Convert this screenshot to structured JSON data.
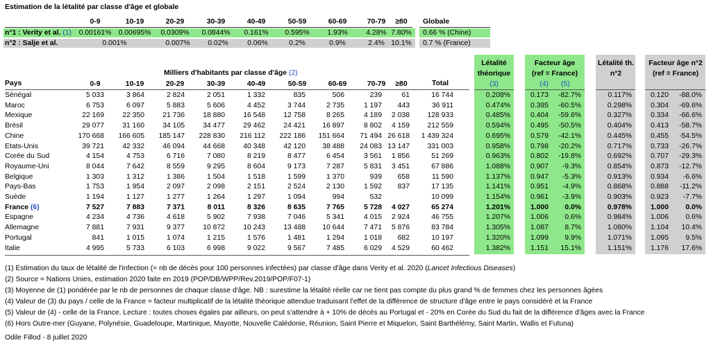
{
  "title": "Estimation de la létalité par classe d'âge et globale",
  "age_classes": [
    "0-9",
    "10-19",
    "20-29",
    "30-39",
    "40-49",
    "50-59",
    "60-69",
    "70-79",
    "≥80"
  ],
  "globale_label": "Globale",
  "study1": {
    "label_prefix": "n°1 : Verity et al. ",
    "label_ref": "(1)",
    "values": [
      "0.00161%",
      "0.00695%",
      "0.0309%",
      "0.0844%",
      "0.161%",
      "0.595%",
      "1.93%",
      "4.28%",
      "7.80%"
    ],
    "globale": "0.66 % (Chine)"
  },
  "study2": {
    "label": "n°2 : Salje et al.",
    "values": [
      "0.001%",
      "0.007%",
      "0.02%",
      "0.06%",
      "0.2%",
      "0.9%",
      "2.4%",
      "10.1%"
    ],
    "globale": "0.7 % (France)"
  },
  "headers": {
    "pays": "Pays",
    "milliers": "Milliers d'habitants par classe d'âge ",
    "milliers_ref": "(2)",
    "total": "Total",
    "letalite_l1": "Létalité",
    "letalite_l2": "théorique",
    "letalite_ref": "(3)",
    "facteur_l1": "Facteur âge",
    "facteur_l2": "(ref = France)",
    "facteur_ref1": "(4)",
    "facteur_ref2": "(5)",
    "let2_l1": "Létalité th.",
    "let2_l2": "n°2",
    "fac2_l1": "Facteur âge n°2",
    "fac2_l2": "(ref = France)"
  },
  "rows": [
    {
      "pays": "Sénégal",
      "vals": [
        "5 033",
        "3 864",
        "2 824",
        "2 051",
        "1 332",
        "835",
        "506",
        "239",
        "61"
      ],
      "total": "16 744",
      "let": "0.208%",
      "fac": "0.173",
      "pct": "-82.7%",
      "let2": "0.117%",
      "fac2": "0.120",
      "pct2": "-88.0%"
    },
    {
      "pays": "Maroc",
      "vals": [
        "6 753",
        "6 097",
        "5 883",
        "5 606",
        "4 452",
        "3 744",
        "2 735",
        "1 197",
        "443"
      ],
      "total": "36 911",
      "let": "0.474%",
      "fac": "0.395",
      "pct": "-60.5%",
      "let2": "0.298%",
      "fac2": "0.304",
      "pct2": "-69.6%"
    },
    {
      "pays": "Mexique",
      "vals": [
        "22 169",
        "22 350",
        "21 736",
        "18 880",
        "16 548",
        "12 758",
        "8 265",
        "4 189",
        "2 038"
      ],
      "total": "128 933",
      "let": "0.485%",
      "fac": "0.404",
      "pct": "-59.6%",
      "let2": "0.327%",
      "fac2": "0.334",
      "pct2": "-66.6%"
    },
    {
      "pays": "Brésil",
      "vals": [
        "29 077",
        "31 160",
        "34 105",
        "34 477",
        "29 462",
        "24 421",
        "16 897",
        "8 802",
        "4 159"
      ],
      "total": "212 559",
      "let": "0.594%",
      "fac": "0.495",
      "pct": "-50.5%",
      "let2": "0.404%",
      "fac2": "0.413",
      "pct2": "-58.7%"
    },
    {
      "pays": "Chine",
      "vals": [
        "170 668",
        "166 605",
        "185 147",
        "228 830",
        "216 112",
        "222 186",
        "151 664",
        "71 494",
        "26 618"
      ],
      "total": "1 439 324",
      "let": "0.695%",
      "fac": "0.579",
      "pct": "-42.1%",
      "let2": "0.445%",
      "fac2": "0.455",
      "pct2": "-54.5%"
    },
    {
      "pays": "Etats-Unis",
      "vals": [
        "39 721",
        "42 332",
        "46 094",
        "44 668",
        "40 348",
        "42 120",
        "38 488",
        "24 083",
        "13 147"
      ],
      "total": "331 003",
      "let": "0.958%",
      "fac": "0.798",
      "pct": "-20.2%",
      "let2": "0.717%",
      "fac2": "0.733",
      "pct2": "-26.7%"
    },
    {
      "pays": "Corée du Sud",
      "vals": [
        "4 154",
        "4 753",
        "6 716",
        "7 080",
        "8 219",
        "8 477",
        "6 454",
        "3 561",
        "1 856"
      ],
      "total": "51 269",
      "let": "0.963%",
      "fac": "0.802",
      "pct": "-19.8%",
      "let2": "0.692%",
      "fac2": "0.707",
      "pct2": "-29.3%"
    },
    {
      "pays": "Royaume-Uni",
      "vals": [
        "8 044",
        "7 642",
        "8 559",
        "9 295",
        "8 604",
        "9 173",
        "7 287",
        "5 831",
        "3 451"
      ],
      "total": "67 886",
      "let": "1.088%",
      "fac": "0.907",
      "pct": "-9.3%",
      "let2": "0.854%",
      "fac2": "0.873",
      "pct2": "-12.7%"
    },
    {
      "pays": "Belgique",
      "vals": [
        "1 303",
        "1 312",
        "1 386",
        "1 504",
        "1 518",
        "1 599",
        "1 370",
        "939",
        "658"
      ],
      "total": "11 590",
      "let": "1.137%",
      "fac": "0.947",
      "pct": "-5.3%",
      "let2": "0.913%",
      "fac2": "0.934",
      "pct2": "-6.6%"
    },
    {
      "pays": "Pays-Bas",
      "vals": [
        "1 753",
        "1 954",
        "2 097",
        "2 098",
        "2 151",
        "2 524",
        "2 130",
        "1 592",
        "837"
      ],
      "total": "17 135",
      "let": "1.141%",
      "fac": "0.951",
      "pct": "-4.9%",
      "let2": "0.868%",
      "fac2": "0.888",
      "pct2": "-11.2%"
    },
    {
      "pays": "Suède",
      "vals": [
        "1 194",
        "1 127",
        "1 277",
        "1 264",
        "1 297",
        "1 094",
        "994",
        "532",
        ""
      ],
      "total": "10 099",
      "let": "1.154%",
      "fac": "0.961",
      "pct": "-3.9%",
      "let2": "0.903%",
      "fac2": "0.923",
      "pct2": "-7.7%"
    },
    {
      "pays": "France ",
      "ref": "(6)",
      "bold": true,
      "vals": [
        "7 527",
        "7 883",
        "7 371",
        "8 011",
        "8 326",
        "8 635",
        "7 765",
        "5 728",
        "4 027"
      ],
      "total": "65 274",
      "let": "1.201%",
      "fac": "1.000",
      "pct": "0.0%",
      "let2": "0.978%",
      "fac2": "1.000",
      "pct2": "0.0%"
    },
    {
      "pays": "Espagne",
      "vals": [
        "4 234",
        "4 736",
        "4 618",
        "5 902",
        "7 938",
        "7 046",
        "5 341",
        "4 015",
        "2 924"
      ],
      "total": "46 755",
      "let": "1.207%",
      "fac": "1.006",
      "pct": "0.6%",
      "let2": "0.984%",
      "fac2": "1.006",
      "pct2": "0.6%"
    },
    {
      "pays": "Allemagne",
      "vals": [
        "7 881",
        "7 931",
        "9 377",
        "10 872",
        "10 243",
        "13 488",
        "10 644",
        "7 471",
        "5 876"
      ],
      "total": "83 784",
      "let": "1.305%",
      "fac": "1.087",
      "pct": "8.7%",
      "let2": "1.080%",
      "fac2": "1.104",
      "pct2": "10.4%"
    },
    {
      "pays": "Portugal",
      "vals": [
        "841",
        "1 015",
        "1 074",
        "1 215",
        "1 576",
        "1 481",
        "1 294",
        "1 018",
        "682"
      ],
      "total": "10 197",
      "let": "1.320%",
      "fac": "1.099",
      "pct": "9.9%",
      "let2": "1.071%",
      "fac2": "1.095",
      "pct2": "9.5%"
    },
    {
      "pays": "Italie",
      "vals": [
        "4 995",
        "5 733",
        "6 103",
        "6 998",
        "9 022",
        "9 567",
        "7 485",
        "6 029",
        "4 529"
      ],
      "total": "60 462",
      "let": "1.382%",
      "fac": "1.151",
      "pct": "15.1%",
      "let2": "1.151%",
      "fac2": "1.176",
      "pct2": "17.6%"
    }
  ],
  "footnotes": {
    "f1_a": "(1) Estimation du taux de létalité de l'infection (= nb de décès pour 100 personnes infectées) par classe d'âge dans Verity et al. 2020 (",
    "f1_i": "Lancet Infectious Diseases",
    "f1_b": ")",
    "f2": "(2) Source = Nations Unies, estimation 2020 faite en 2019 (POP/DB/WPP/Rev.2019/POP/F07-1)",
    "f3": "(3) Moyenne de (1) pondérée par le nb de personnes de chaque classe d'âge. NB : surestime la létalité réelle car ne tient pas compte du plus grand % de femmes chez les personnes âgées",
    "f4": "(4) Valeur de (3) du pays / celle de la France = facteur multiplicatif de la létalité théorique attendue traduisant l'effet de la différence de structure d'âge entre le pays considéré et la France",
    "f5": "(5) Valeur de (4) - celle de la France. Lecture : toutes choses égales par ailleurs, on peut s'attendre à + 10% de décès au Portugal et - 20% en Corée du Sud du fait de la différence d'âges avec la France",
    "f6": "(6) Hors Outre-mer (Guyane, Polynésie, Guadeloupe, Martinique, Mayotte, Nouvelle Calédonie, Réunion, Saint Pierre et Miquelon, Saint Barthélémy, Saint Martin, Wallis et Futuna)"
  },
  "author": "Odile Fillod - 8 juillet 2020"
}
